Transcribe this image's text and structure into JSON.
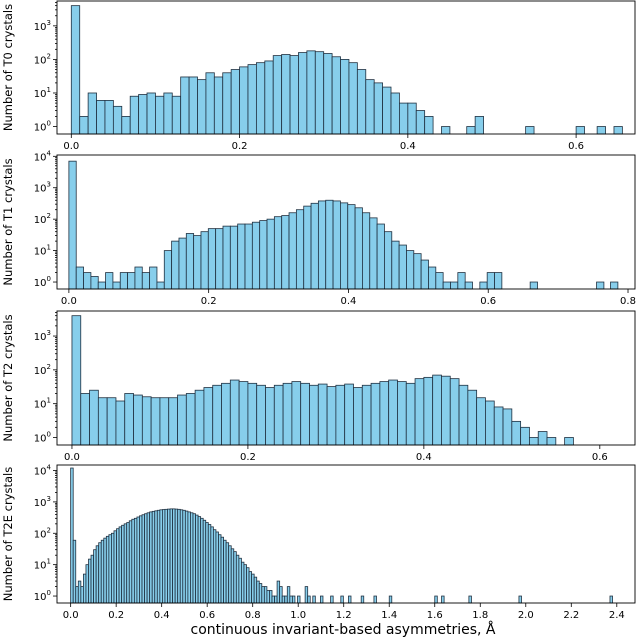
{
  "figure": {
    "xlabel": "continuous invariant-based asymmetries, Å",
    "bar_color": "#87ceeb",
    "edge_color": "#1f3040"
  },
  "chart_data": [
    {
      "type": "bar",
      "ylabel": "Number of T0 crystals",
      "yscale": "log",
      "ylim": [
        0.6,
        5500
      ],
      "xlim": [
        -0.017,
        0.67
      ],
      "xticks": [
        0.0,
        0.2,
        0.4,
        0.6
      ],
      "xtick_labels": [
        "0.0",
        "0.2",
        "0.4",
        "0.6"
      ],
      "yticks": [
        1,
        10,
        100,
        1000
      ],
      "ytick_labels": [
        "10^0",
        "10^1",
        "10^2",
        "10^3"
      ],
      "bin_start": 0.0,
      "bin_width": 0.01,
      "values": [
        4000,
        2,
        10,
        6,
        6,
        4,
        2,
        8,
        9,
        10,
        8,
        10,
        8,
        30,
        30,
        25,
        40,
        30,
        40,
        50,
        60,
        70,
        80,
        90,
        130,
        140,
        130,
        160,
        180,
        170,
        150,
        120,
        100,
        80,
        50,
        25,
        20,
        15,
        10,
        5,
        5,
        3,
        2,
        0,
        1,
        0,
        0,
        1,
        2,
        0,
        0,
        0,
        0,
        0,
        0,
        0,
        0,
        0,
        0,
        0,
        0,
        0,
        0,
        0,
        0,
        0,
        0,
        0,
        0,
        0,
        0,
        0,
        0,
        0,
        0,
        0,
        0,
        0,
        0,
        0,
        0,
        0,
        0,
        0,
        0,
        0,
        0,
        0,
        0,
        0
      ],
      "extra_bins": [
        {
          "x": 0.54,
          "value": 1
        },
        {
          "x": 0.6,
          "value": 1
        },
        {
          "x": 0.625,
          "value": 1
        },
        {
          "x": 0.645,
          "value": 1
        }
      ]
    },
    {
      "type": "bar",
      "ylabel": "Number of T1 crystals",
      "yscale": "log",
      "ylim": [
        0.6,
        11000
      ],
      "xlim": [
        -0.017,
        0.81
      ],
      "xticks": [
        0.0,
        0.2,
        0.4,
        0.6,
        0.8
      ],
      "xtick_labels": [
        "0.0",
        "0.2",
        "0.4",
        "0.6",
        "0.8"
      ],
      "yticks": [
        1,
        10,
        100,
        1000,
        10000
      ],
      "ytick_labels": [
        "10^0",
        "10^1",
        "10^2",
        "10^3",
        "10^4"
      ],
      "bin_start": 0.0,
      "bin_width": 0.0105,
      "values": [
        7000,
        3,
        2,
        1.5,
        1,
        2,
        1,
        2,
        2,
        3,
        2,
        3,
        1,
        10,
        20,
        25,
        35,
        30,
        40,
        50,
        50,
        60,
        60,
        70,
        70,
        80,
        90,
        100,
        120,
        130,
        160,
        200,
        260,
        320,
        380,
        400,
        380,
        330,
        290,
        230,
        160,
        110,
        70,
        40,
        20,
        15,
        10,
        8,
        5,
        3,
        2,
        1,
        1,
        2,
        1,
        0,
        1,
        2,
        2
      ],
      "extra_bins": [
        {
          "x": 0.66,
          "value": 1
        },
        {
          "x": 0.755,
          "value": 1
        },
        {
          "x": 0.775,
          "value": 1
        }
      ]
    },
    {
      "type": "bar",
      "ylabel": "Number of T2 crystals",
      "yscale": "log",
      "ylim": [
        0.6,
        5500
      ],
      "xlim": [
        -0.017,
        0.64
      ],
      "xticks": [
        0.0,
        0.2,
        0.4,
        0.6
      ],
      "xtick_labels": [
        "0.0",
        "0.2",
        "0.4",
        "0.6"
      ],
      "yticks": [
        1,
        10,
        100,
        1000
      ],
      "ytick_labels": [
        "10^0",
        "10^1",
        "10^2",
        "10^3"
      ],
      "bin_start": 0.0,
      "bin_width": 0.01,
      "values": [
        4000,
        20,
        25,
        15,
        15,
        12,
        20,
        18,
        16,
        15,
        15,
        15,
        18,
        20,
        25,
        30,
        35,
        40,
        50,
        45,
        40,
        35,
        30,
        35,
        40,
        45,
        40,
        35,
        38,
        32,
        35,
        38,
        30,
        35,
        40,
        45,
        50,
        45,
        40,
        55,
        60,
        70,
        65,
        55,
        35,
        25,
        15,
        12,
        8,
        7,
        3,
        2,
        1,
        1.5,
        1,
        0,
        1
      ],
      "extra_bins": []
    },
    {
      "type": "bar",
      "ylabel": "Number of T2E crystals",
      "yscale": "log",
      "ylim": [
        0.6,
        15000
      ],
      "xlim": [
        -0.06,
        2.48
      ],
      "xticks": [
        0.0,
        0.2,
        0.4,
        0.6,
        0.8,
        1.0,
        1.2,
        1.4,
        1.6,
        1.8,
        2.0,
        2.2,
        2.4
      ],
      "xtick_labels": [
        "0.0",
        "0.2",
        "0.4",
        "0.6",
        "0.8",
        "1.0",
        "1.2",
        "1.4",
        "1.6",
        "1.8",
        "2.0",
        "2.2",
        "2.4"
      ],
      "yticks": [
        1,
        10,
        100,
        1000,
        10000
      ],
      "ytick_labels": [
        "10^0",
        "10^1",
        "10^2",
        "10^3",
        "10^4"
      ],
      "bin_start": 0.0,
      "bin_width": 0.0112,
      "values": [
        12000,
        60,
        2,
        3,
        2,
        5,
        10,
        15,
        20,
        30,
        40,
        50,
        60,
        70,
        80,
        90,
        100,
        120,
        140,
        160,
        180,
        200,
        220,
        250,
        280,
        300,
        330,
        360,
        390,
        420,
        450,
        480,
        500,
        520,
        540,
        560,
        570,
        580,
        590,
        600,
        600,
        590,
        580,
        560,
        540,
        510,
        480,
        450,
        420,
        380,
        340,
        300,
        260,
        220,
        190,
        160,
        130,
        110,
        90,
        75,
        60,
        50,
        40,
        32,
        26,
        20,
        16,
        12,
        10,
        8,
        6,
        5,
        4,
        3,
        2.5,
        2,
        2,
        1.5,
        1.5,
        1,
        1,
        3,
        2,
        1,
        1,
        2,
        1,
        1,
        0,
        1,
        0,
        0,
        2,
        1,
        0,
        1,
        0,
        0,
        1,
        0,
        0,
        0,
        1,
        0,
        0,
        0,
        1,
        0,
        0,
        1,
        0,
        0,
        0,
        0,
        1,
        0,
        0,
        0,
        0,
        1,
        0,
        0,
        0,
        0,
        0,
        1
      ],
      "extra_bins": [
        {
          "x": 1.6,
          "value": 1
        },
        {
          "x": 1.63,
          "value": 1
        },
        {
          "x": 1.75,
          "value": 1
        },
        {
          "x": 1.97,
          "value": 1
        },
        {
          "x": 2.37,
          "value": 1
        }
      ]
    }
  ]
}
